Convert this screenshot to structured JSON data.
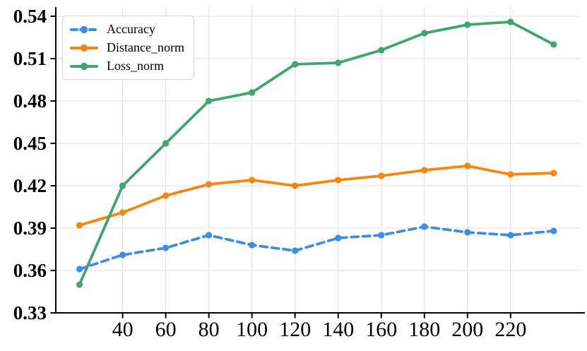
{
  "chart_data": {
    "type": "line",
    "title": "",
    "xlabel": "",
    "ylabel": "",
    "x": [
      20,
      40,
      60,
      80,
      100,
      120,
      140,
      160,
      180,
      200,
      220,
      240
    ],
    "series": [
      {
        "name": "Accuracy",
        "color": "#3d8de4",
        "line_style": "dashed",
        "marker": "circle",
        "values": [
          0.361,
          0.371,
          0.376,
          0.385,
          0.378,
          0.374,
          0.383,
          0.385,
          0.391,
          0.387,
          0.385,
          0.388
        ]
      },
      {
        "name": "Distance_norm",
        "color": "#f7860e",
        "line_style": "solid",
        "marker": "circle",
        "values": [
          0.392,
          0.401,
          0.413,
          0.421,
          0.424,
          0.42,
          0.424,
          0.427,
          0.431,
          0.434,
          0.428,
          0.429
        ]
      },
      {
        "name": "Loss_norm",
        "color": "#3da76c",
        "line_style": "solid",
        "marker": "circle",
        "values": [
          0.35,
          0.42,
          0.45,
          0.48,
          0.486,
          0.506,
          0.507,
          0.516,
          0.528,
          0.534,
          0.536,
          0.52
        ]
      }
    ],
    "x_ticks": [
      40,
      60,
      80,
      100,
      120,
      140,
      160,
      180,
      200,
      220
    ],
    "x_tick_labels": [
      "40",
      "60",
      "80",
      "100",
      "120",
      "140",
      "160",
      "180",
      "200",
      "220"
    ],
    "y_ticks": [
      0.33,
      0.36,
      0.39,
      0.42,
      0.45,
      0.48,
      0.51,
      0.54
    ],
    "y_tick_labels": [
      "0.33",
      "0.36",
      "0.39",
      "0.42",
      "0.45",
      "0.48",
      "0.51",
      "0.54"
    ],
    "xlim": [
      9,
      252.5
    ],
    "ylim": [
      0.33,
      0.5465
    ],
    "grid": true,
    "grid_color": "#e6e6e6",
    "axis_color": "#000000",
    "background": "#ffffff",
    "legend_position": "top-left"
  },
  "legend": {
    "items": [
      {
        "label": "Accuracy"
      },
      {
        "label": "Distance_norm"
      },
      {
        "label": "Loss_norm"
      }
    ]
  }
}
